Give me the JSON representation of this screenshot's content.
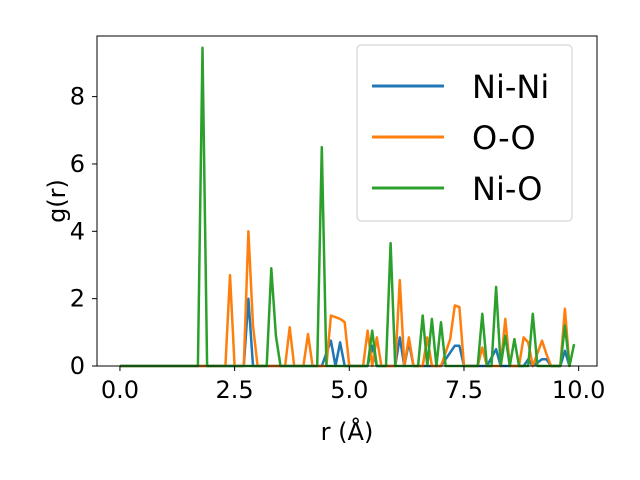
{
  "chart_data": {
    "type": "line",
    "title": "",
    "xlabel": "r (Å)",
    "ylabel": "g(r)",
    "xlim": [
      -0.5,
      10.4
    ],
    "ylim": [
      0,
      9.8
    ],
    "xticks": [
      0.0,
      2.5,
      5.0,
      7.5,
      10.0
    ],
    "xtick_labels": [
      "0.0",
      "2.5",
      "5.0",
      "7.5",
      "10.0"
    ],
    "yticks": [
      0,
      2,
      4,
      6,
      8
    ],
    "ytick_labels": [
      "0",
      "2",
      "4",
      "6",
      "8"
    ],
    "grid": false,
    "legend_position": "top-right",
    "series": [
      {
        "name": "Ni-Ni",
        "color": "#1f77b4",
        "points": [
          [
            0,
            0
          ],
          [
            1.0,
            0
          ],
          [
            2.0,
            0
          ],
          [
            2.6,
            0
          ],
          [
            2.7,
            0
          ],
          [
            2.8,
            2.0
          ],
          [
            2.9,
            0
          ],
          [
            3.5,
            0
          ],
          [
            4.0,
            0
          ],
          [
            4.4,
            0
          ],
          [
            4.6,
            0.75
          ],
          [
            4.7,
            0
          ],
          [
            4.8,
            0.7
          ],
          [
            4.9,
            0
          ],
          [
            5.4,
            0
          ],
          [
            5.5,
            0.6
          ],
          [
            5.6,
            0
          ],
          [
            6.0,
            0
          ],
          [
            6.1,
            0.85
          ],
          [
            6.2,
            0
          ],
          [
            6.3,
            0.7
          ],
          [
            6.4,
            0
          ],
          [
            7.0,
            0
          ],
          [
            7.3,
            0.6
          ],
          [
            7.4,
            0.6
          ],
          [
            7.5,
            0
          ],
          [
            8.0,
            0
          ],
          [
            8.2,
            0.5
          ],
          [
            8.3,
            0
          ],
          [
            8.8,
            0
          ],
          [
            8.9,
            0.2
          ],
          [
            9.0,
            0
          ],
          [
            9.2,
            0.2
          ],
          [
            9.3,
            0.2
          ],
          [
            9.4,
            0
          ],
          [
            9.6,
            0
          ],
          [
            9.7,
            0.45
          ],
          [
            9.8,
            0
          ]
        ]
      },
      {
        "name": "O-O",
        "color": "#ff7f0e",
        "points": [
          [
            0,
            0
          ],
          [
            2.1,
            0
          ],
          [
            2.3,
            0
          ],
          [
            2.4,
            2.7
          ],
          [
            2.5,
            0
          ],
          [
            2.7,
            0
          ],
          [
            2.8,
            4.0
          ],
          [
            2.9,
            1.2
          ],
          [
            3.0,
            0
          ],
          [
            3.6,
            0
          ],
          [
            3.7,
            1.15
          ],
          [
            3.8,
            0
          ],
          [
            4.0,
            0
          ],
          [
            4.1,
            0.95
          ],
          [
            4.2,
            0
          ],
          [
            4.4,
            0
          ],
          [
            4.5,
            0
          ],
          [
            4.6,
            1.5
          ],
          [
            4.7,
            1.45
          ],
          [
            4.8,
            1.4
          ],
          [
            4.9,
            1.3
          ],
          [
            5.0,
            0
          ],
          [
            5.3,
            0
          ],
          [
            5.4,
            1.05
          ],
          [
            5.5,
            0
          ],
          [
            5.6,
            0.85
          ],
          [
            5.7,
            0
          ],
          [
            6.0,
            0
          ],
          [
            6.1,
            2.55
          ],
          [
            6.2,
            0
          ],
          [
            6.3,
            0.85
          ],
          [
            6.4,
            0
          ],
          [
            6.6,
            0
          ],
          [
            6.7,
            0.85
          ],
          [
            6.8,
            0
          ],
          [
            7.0,
            0
          ],
          [
            7.2,
            0.8
          ],
          [
            7.3,
            1.8
          ],
          [
            7.4,
            1.75
          ],
          [
            7.5,
            0
          ],
          [
            7.8,
            0
          ],
          [
            7.9,
            0.55
          ],
          [
            8.0,
            0
          ],
          [
            8.3,
            0
          ],
          [
            8.4,
            1.4
          ],
          [
            8.5,
            0
          ],
          [
            8.7,
            0
          ],
          [
            8.8,
            0.85
          ],
          [
            8.9,
            0.7
          ],
          [
            9.0,
            0
          ],
          [
            9.2,
            0.75
          ],
          [
            9.3,
            0.35
          ],
          [
            9.4,
            0
          ],
          [
            9.6,
            0
          ],
          [
            9.7,
            1.7
          ],
          [
            9.8,
            0
          ]
        ]
      },
      {
        "name": "Ni-O",
        "color": "#2ca02c",
        "points": [
          [
            0,
            0
          ],
          [
            1.0,
            0
          ],
          [
            1.7,
            0
          ],
          [
            1.8,
            9.45
          ],
          [
            1.9,
            0
          ],
          [
            2.0,
            0
          ],
          [
            2.9,
            0
          ],
          [
            3.2,
            0
          ],
          [
            3.3,
            2.9
          ],
          [
            3.4,
            0.9
          ],
          [
            3.5,
            0
          ],
          [
            4.1,
            0
          ],
          [
            4.3,
            0
          ],
          [
            4.4,
            6.5
          ],
          [
            4.5,
            0
          ],
          [
            5.3,
            0
          ],
          [
            5.4,
            0
          ],
          [
            5.5,
            1.05
          ],
          [
            5.6,
            0
          ],
          [
            5.7,
            0
          ],
          [
            5.8,
            0
          ],
          [
            5.9,
            3.65
          ],
          [
            6.0,
            0
          ],
          [
            6.4,
            0
          ],
          [
            6.5,
            0
          ],
          [
            6.6,
            1.5
          ],
          [
            6.7,
            0
          ],
          [
            6.8,
            1.4
          ],
          [
            6.9,
            0
          ],
          [
            7.0,
            1.3
          ],
          [
            7.1,
            0
          ],
          [
            7.8,
            0
          ],
          [
            7.9,
            1.55
          ],
          [
            8.0,
            0
          ],
          [
            8.1,
            0
          ],
          [
            8.2,
            2.35
          ],
          [
            8.3,
            0
          ],
          [
            8.4,
            0.9
          ],
          [
            8.5,
            0
          ],
          [
            8.6,
            0.8
          ],
          [
            8.7,
            0
          ],
          [
            8.9,
            0
          ],
          [
            9.0,
            1.55
          ],
          [
            9.1,
            0
          ],
          [
            9.6,
            0
          ],
          [
            9.7,
            1.2
          ],
          [
            9.8,
            0
          ],
          [
            9.9,
            0.65
          ]
        ]
      }
    ]
  }
}
